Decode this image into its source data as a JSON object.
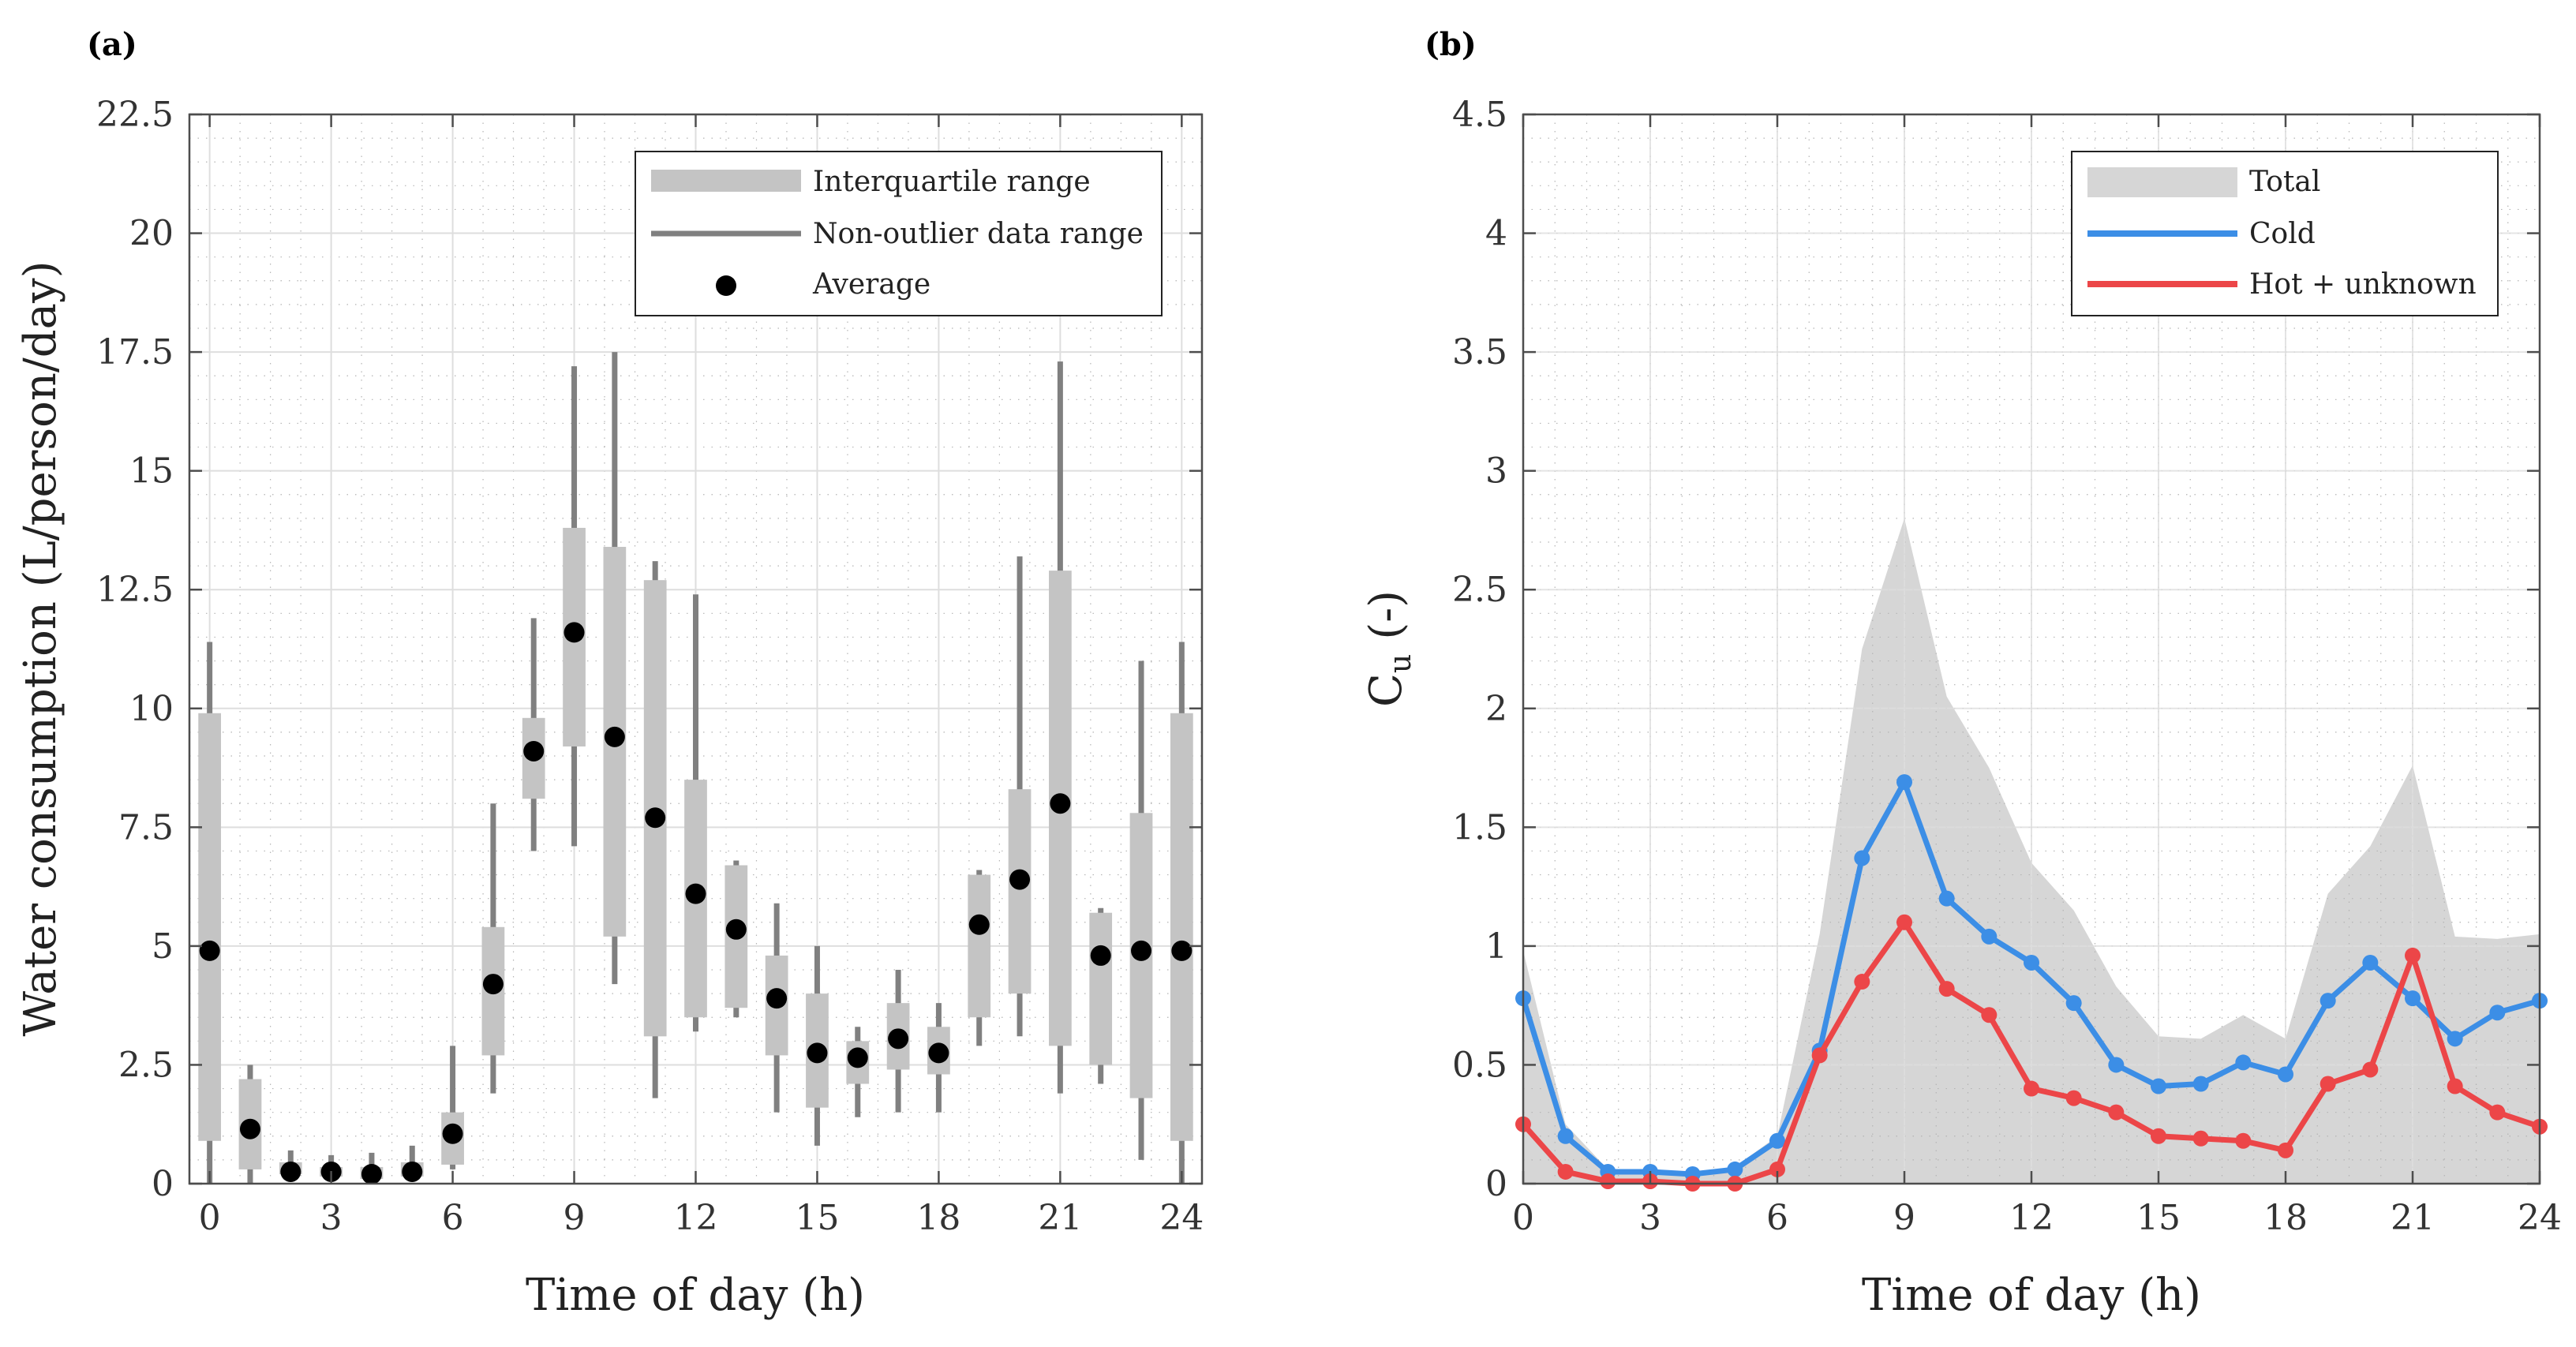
{
  "colors": {
    "box": "#c4c4c4",
    "whisker": "#808080",
    "mean": "#000000",
    "total_area": "#d6d6d6",
    "cold": "#3c8ee6",
    "hot": "#ec4648",
    "axis": "#4d4d4d",
    "grid": "#dedede",
    "minor_grid": "#b4b4b4"
  },
  "chart_data": [
    {
      "panel": "(a)",
      "type": "box",
      "xlabel": "Time of day (h)",
      "ylabel": "Water consumption (L/person/day)",
      "xlim": [
        -0.5,
        24.5
      ],
      "ylim": [
        0,
        22.5
      ],
      "xticks": [
        0,
        3,
        6,
        9,
        12,
        15,
        18,
        21,
        24
      ],
      "yticks": [
        0,
        2.5,
        5,
        7.5,
        10,
        12.5,
        15,
        17.5,
        20,
        22.5
      ],
      "ytick_labels": [
        "0",
        "2.5",
        "5",
        "7.5",
        "10",
        "12.5",
        "15",
        "17.5",
        "20",
        "22.5"
      ],
      "legend": {
        "position": "top-right",
        "entries": [
          "Interquartile range",
          "Non-outlier data range",
          "Average"
        ]
      },
      "hours": [
        0,
        1,
        2,
        3,
        4,
        5,
        6,
        7,
        8,
        9,
        10,
        11,
        12,
        13,
        14,
        15,
        16,
        17,
        18,
        19,
        20,
        21,
        22,
        23,
        24
      ],
      "q1": [
        0.9,
        0.3,
        0.2,
        0.15,
        0.1,
        0.15,
        0.4,
        2.7,
        8.1,
        9.2,
        5.2,
        3.1,
        3.5,
        3.7,
        2.7,
        1.6,
        2.1,
        2.4,
        2.3,
        3.5,
        4.0,
        2.9,
        2.5,
        1.8,
        0.9
      ],
      "q3": [
        9.9,
        2.2,
        0.45,
        0.35,
        0.35,
        0.45,
        1.5,
        5.4,
        9.8,
        13.8,
        13.4,
        12.7,
        8.5,
        6.7,
        4.8,
        4.0,
        3.0,
        3.8,
        3.3,
        6.5,
        8.3,
        12.9,
        5.7,
        7.8,
        9.9
      ],
      "wmin": [
        0,
        0,
        0.1,
        0.1,
        0.05,
        0.1,
        0.3,
        1.9,
        7.0,
        7.1,
        4.2,
        1.8,
        3.2,
        3.5,
        1.5,
        0.8,
        1.4,
        1.5,
        1.5,
        2.9,
        3.1,
        1.9,
        2.1,
        0.5,
        0
      ],
      "wmax": [
        11.4,
        2.5,
        0.7,
        0.6,
        0.65,
        0.8,
        2.9,
        8.0,
        11.9,
        17.2,
        17.5,
        13.1,
        12.4,
        6.8,
        5.9,
        5.0,
        3.3,
        4.5,
        3.8,
        6.6,
        13.2,
        17.3,
        5.8,
        11.0,
        11.4
      ],
      "mean": [
        4.9,
        1.15,
        0.25,
        0.25,
        0.2,
        0.25,
        1.05,
        4.2,
        9.1,
        11.6,
        9.4,
        7.7,
        6.1,
        5.35,
        3.9,
        2.75,
        2.65,
        3.05,
        2.75,
        5.45,
        6.4,
        8.0,
        4.8,
        4.9,
        4.9
      ]
    },
    {
      "panel": "(b)",
      "type": "line+area",
      "xlabel": "Time of day (h)",
      "ylabel_main": "C",
      "ylabel_sub": "u",
      "ylabel_suffix": "(-)",
      "xlim": [
        0,
        24
      ],
      "ylim": [
        0,
        4.5
      ],
      "xticks": [
        0,
        3,
        6,
        9,
        12,
        15,
        18,
        21,
        24
      ],
      "yticks": [
        0,
        0.5,
        1,
        1.5,
        2,
        2.5,
        3,
        3.5,
        4,
        4.5
      ],
      "ytick_labels": [
        "0",
        "0.5",
        "1",
        "1.5",
        "2",
        "2.5",
        "3",
        "3.5",
        "4",
        "4.5"
      ],
      "legend": {
        "position": "top-right",
        "entries": [
          "Total",
          "Cold",
          "Hot + unknown"
        ]
      },
      "x": [
        0,
        1,
        2,
        3,
        4,
        5,
        6,
        7,
        8,
        9,
        10,
        11,
        12,
        13,
        14,
        15,
        16,
        17,
        18,
        19,
        20,
        21,
        22,
        23,
        24
      ],
      "series": [
        {
          "name": "Total",
          "kind": "area",
          "values": [
            0.98,
            0.25,
            0.06,
            0.06,
            0.05,
            0.07,
            0.2,
            1.05,
            2.25,
            2.8,
            2.05,
            1.75,
            1.35,
            1.15,
            0.83,
            0.62,
            0.61,
            0.71,
            0.61,
            1.22,
            1.42,
            1.76,
            1.04,
            1.03,
            1.05
          ]
        },
        {
          "name": "Cold",
          "kind": "line",
          "values": [
            0.78,
            0.2,
            0.05,
            0.05,
            0.04,
            0.06,
            0.18,
            0.56,
            1.37,
            1.69,
            1.2,
            1.04,
            0.93,
            0.76,
            0.5,
            0.41,
            0.42,
            0.51,
            0.46,
            0.77,
            0.93,
            0.78,
            0.61,
            0.72,
            0.77
          ]
        },
        {
          "name": "Hot + unknown",
          "kind": "line",
          "values": [
            0.25,
            0.05,
            0.01,
            0.01,
            0.0,
            0.0,
            0.06,
            0.54,
            0.85,
            1.1,
            0.82,
            0.71,
            0.4,
            0.36,
            0.3,
            0.2,
            0.19,
            0.18,
            0.14,
            0.42,
            0.48,
            0.96,
            0.41,
            0.3,
            0.24
          ]
        }
      ]
    }
  ]
}
